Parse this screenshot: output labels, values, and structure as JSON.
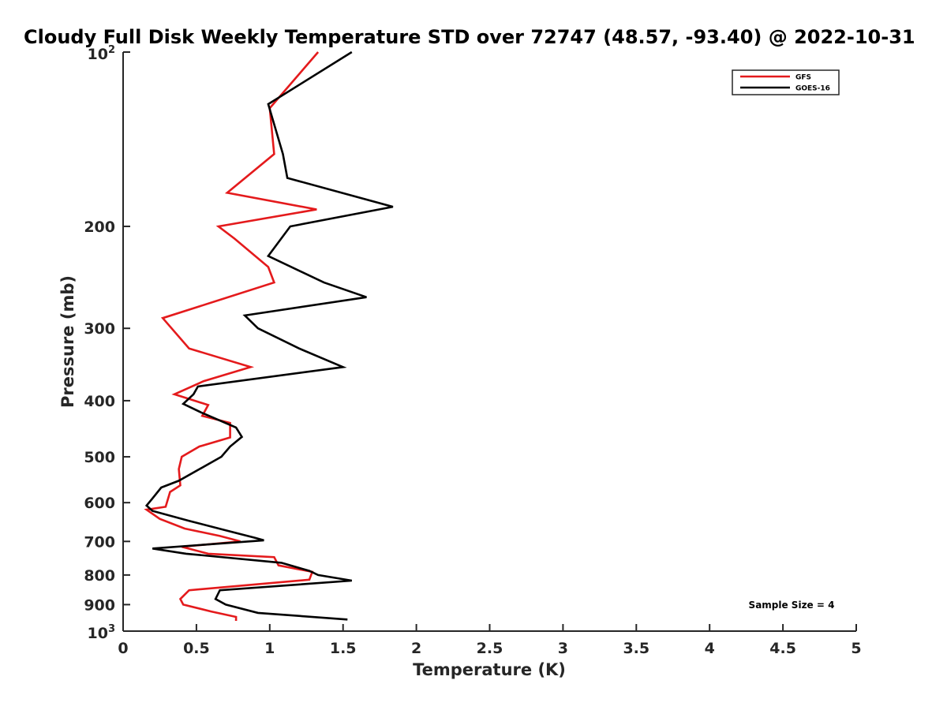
{
  "chart_data": {
    "type": "line",
    "title": "Cloudy Full Disk Weekly Temperature STD over 72747 (48.57, -93.40) @ 2022-10-31",
    "xlabel": "Temperature (K)",
    "ylabel": "Pressure (mb)",
    "xlim": [
      0,
      5
    ],
    "ylim": [
      100,
      1000
    ],
    "yscale": "log",
    "y_reversed": true,
    "x_ticks": [
      0,
      0.5,
      1,
      1.5,
      2,
      2.5,
      3,
      3.5,
      4,
      4.5,
      5
    ],
    "x_tick_labels": [
      "0",
      "0.5",
      "1",
      "1.5",
      "2",
      "2.5",
      "3",
      "3.5",
      "4",
      "4.5",
      "5"
    ],
    "y_ticks": [
      200,
      300,
      400,
      500,
      600,
      700,
      800,
      900
    ],
    "y_tick_labels": [
      "200",
      "300",
      "400",
      "500",
      "600",
      "700",
      "800",
      "900"
    ],
    "y_end_labels": {
      "top_base": "10",
      "top_exp": "2",
      "bottom_base": "10",
      "bottom_exp": "3"
    },
    "legend": {
      "position": "top-right"
    },
    "annotation": "Sample Size = 4",
    "series": [
      {
        "name": "GFS",
        "color": "#e41a1c",
        "points": [
          [
            1.33,
            100
          ],
          [
            1.0,
            125
          ],
          [
            1.03,
            150
          ],
          [
            0.71,
            175
          ],
          [
            1.32,
            187
          ],
          [
            0.65,
            200
          ],
          [
            0.76,
            210
          ],
          [
            0.99,
            235
          ],
          [
            1.03,
            250
          ],
          [
            0.27,
            288
          ],
          [
            0.45,
            325
          ],
          [
            0.87,
            350
          ],
          [
            0.55,
            370
          ],
          [
            0.35,
            390
          ],
          [
            0.58,
            407
          ],
          [
            0.54,
            425
          ],
          [
            0.73,
            437
          ],
          [
            0.73,
            463
          ],
          [
            0.52,
            480
          ],
          [
            0.4,
            500
          ],
          [
            0.38,
            525
          ],
          [
            0.39,
            560
          ],
          [
            0.32,
            575
          ],
          [
            0.29,
            610
          ],
          [
            0.16,
            617
          ],
          [
            0.25,
            640
          ],
          [
            0.42,
            665
          ],
          [
            0.66,
            685
          ],
          [
            0.8,
            700
          ],
          [
            0.4,
            715
          ],
          [
            0.58,
            735
          ],
          [
            1.03,
            745
          ],
          [
            1.06,
            770
          ],
          [
            1.29,
            790
          ],
          [
            1.27,
            815
          ],
          [
            0.45,
            850
          ],
          [
            0.39,
            880
          ],
          [
            0.41,
            900
          ],
          [
            0.6,
            925
          ],
          [
            0.77,
            945
          ],
          [
            0.77,
            960
          ]
        ]
      },
      {
        "name": "GOES-16",
        "color": "#000000",
        "points": [
          [
            1.56,
            100
          ],
          [
            0.99,
            123
          ],
          [
            1.09,
            150
          ],
          [
            1.12,
            165
          ],
          [
            1.84,
            185
          ],
          [
            1.14,
            200
          ],
          [
            0.99,
            225
          ],
          [
            1.37,
            250
          ],
          [
            1.66,
            265
          ],
          [
            0.83,
            285
          ],
          [
            0.92,
            300
          ],
          [
            1.2,
            325
          ],
          [
            1.5,
            350
          ],
          [
            0.51,
            378
          ],
          [
            0.48,
            390
          ],
          [
            0.41,
            405
          ],
          [
            0.54,
            420
          ],
          [
            0.77,
            445
          ],
          [
            0.81,
            462
          ],
          [
            0.73,
            480
          ],
          [
            0.67,
            500
          ],
          [
            0.38,
            550
          ],
          [
            0.26,
            565
          ],
          [
            0.2,
            590
          ],
          [
            0.16,
            607
          ],
          [
            0.2,
            620
          ],
          [
            0.45,
            645
          ],
          [
            0.7,
            670
          ],
          [
            0.9,
            690
          ],
          [
            0.96,
            697
          ],
          [
            0.2,
            720
          ],
          [
            0.43,
            735
          ],
          [
            1.08,
            762
          ],
          [
            1.27,
            787
          ],
          [
            1.33,
            800
          ],
          [
            1.56,
            818
          ],
          [
            0.66,
            850
          ],
          [
            0.63,
            880
          ],
          [
            0.7,
            900
          ],
          [
            0.92,
            930
          ],
          [
            1.53,
            955
          ]
        ]
      }
    ]
  }
}
